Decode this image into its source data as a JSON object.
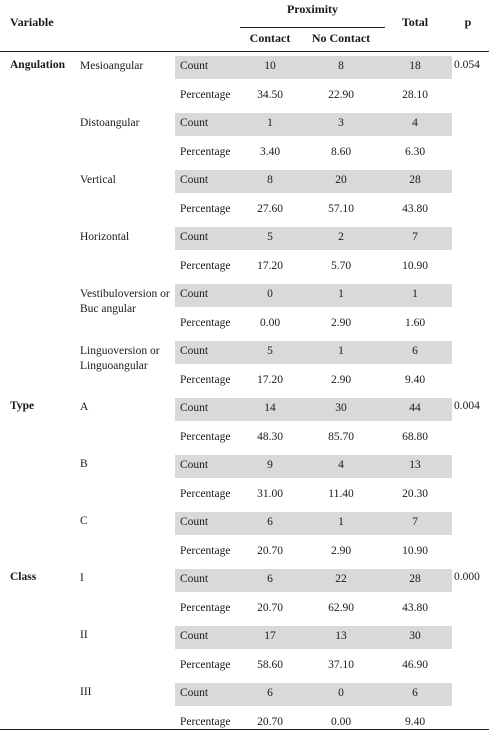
{
  "header": {
    "variable": "Variable",
    "proximity": "Proximity",
    "contact": "Contact",
    "no_contact": "No Contact",
    "total": "Total",
    "p": "p"
  },
  "groups": [
    {
      "name": "Angulation",
      "p": "0.054"
    },
    {
      "name": "Type",
      "p": "0.004"
    },
    {
      "name": "Class",
      "p": "0.000"
    }
  ],
  "subs": [
    "Mesioangular",
    "Distoangular",
    "Vertical",
    "Horizontal",
    "Vestibuloversion or Buc angular",
    "Linguoversion or Linguoangular",
    "A",
    "B",
    "C",
    "I",
    "II",
    "III"
  ],
  "rows": [
    {
      "stat": "Count",
      "contact": "10",
      "no_contact": "8",
      "total": "18"
    },
    {
      "stat": "Percentage",
      "contact": "34.50",
      "no_contact": "22.90",
      "total": "28.10"
    },
    {
      "stat": "Count",
      "contact": "1",
      "no_contact": "3",
      "total": "4"
    },
    {
      "stat": "Percentage",
      "contact": "3.40",
      "no_contact": "8.60",
      "total": "6.30"
    },
    {
      "stat": "Count",
      "contact": "8",
      "no_contact": "20",
      "total": "28"
    },
    {
      "stat": "Percentage",
      "contact": "27.60",
      "no_contact": "57.10",
      "total": "43.80"
    },
    {
      "stat": "Count",
      "contact": "5",
      "no_contact": "2",
      "total": "7"
    },
    {
      "stat": "Percentage",
      "contact": "17.20",
      "no_contact": "5.70",
      "total": "10.90"
    },
    {
      "stat": "Count",
      "contact": "0",
      "no_contact": "1",
      "total": "1"
    },
    {
      "stat": "Percentage",
      "contact": "0.00",
      "no_contact": "2.90",
      "total": "1.60"
    },
    {
      "stat": "Count",
      "contact": "5",
      "no_contact": "1",
      "total": "6"
    },
    {
      "stat": "Percentage",
      "contact": "17.20",
      "no_contact": "2.90",
      "total": "9.40"
    },
    {
      "stat": "Count",
      "contact": "14",
      "no_contact": "30",
      "total": "44"
    },
    {
      "stat": "Percentage",
      "contact": "48.30",
      "no_contact": "85.70",
      "total": "68.80"
    },
    {
      "stat": "Count",
      "contact": "9",
      "no_contact": "4",
      "total": "13"
    },
    {
      "stat": "Percentage",
      "contact": "31.00",
      "no_contact": "11.40",
      "total": "20.30"
    },
    {
      "stat": "Count",
      "contact": "6",
      "no_contact": "1",
      "total": "7"
    },
    {
      "stat": "Percentage",
      "contact": "20.70",
      "no_contact": "2.90",
      "total": "10.90"
    },
    {
      "stat": "Count",
      "contact": "6",
      "no_contact": "22",
      "total": "28"
    },
    {
      "stat": "Percentage",
      "contact": "20.70",
      "no_contact": "62.90",
      "total": "43.80"
    },
    {
      "stat": "Count",
      "contact": "17",
      "no_contact": "13",
      "total": "30"
    },
    {
      "stat": "Percentage",
      "contact": "58.60",
      "no_contact": "37.10",
      "total": "46.90"
    },
    {
      "stat": "Count",
      "contact": "6",
      "no_contact": "0",
      "total": "6"
    },
    {
      "stat": "Percentage",
      "contact": "20.70",
      "no_contact": "0.00",
      "total": "9.40"
    }
  ]
}
